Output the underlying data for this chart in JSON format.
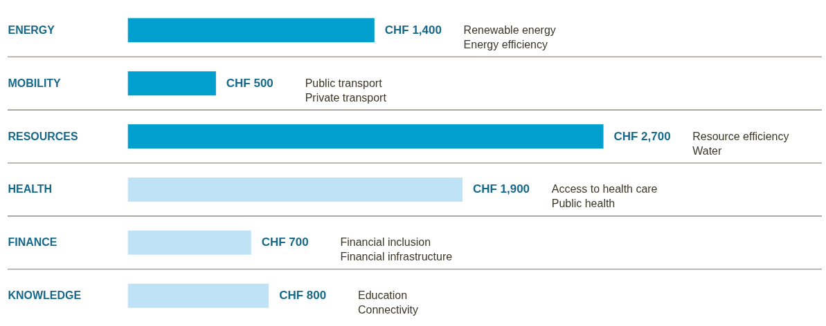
{
  "chart_data": {
    "type": "bar",
    "orientation": "horizontal",
    "categories": [
      "ENERGY",
      "MOBILITY",
      "RESOURCES",
      "HEALTH",
      "FINANCE",
      "KNOWLEDGE"
    ],
    "values": [
      1400,
      500,
      2700,
      1900,
      700,
      800
    ],
    "colors": [
      "#009fce",
      "#009fce",
      "#009fce",
      "#bfe3f6",
      "#bfe3f6",
      "#bfe3f6"
    ],
    "value_labels": [
      "CHF 1,400",
      "CHF 500",
      "CHF 2,700",
      "CHF 1,900",
      "CHF 700",
      "CHF 800"
    ],
    "grid": "y",
    "annotations": [
      "Renewable energy\nEnergy efficiency",
      "Public transport\nPrivate transport",
      "Resource efficiency\nWater",
      "Access to health care\nPublic health",
      "Financial inclusion\nFinancial infrastructure",
      "Education\nConnectivity"
    ]
  }
}
